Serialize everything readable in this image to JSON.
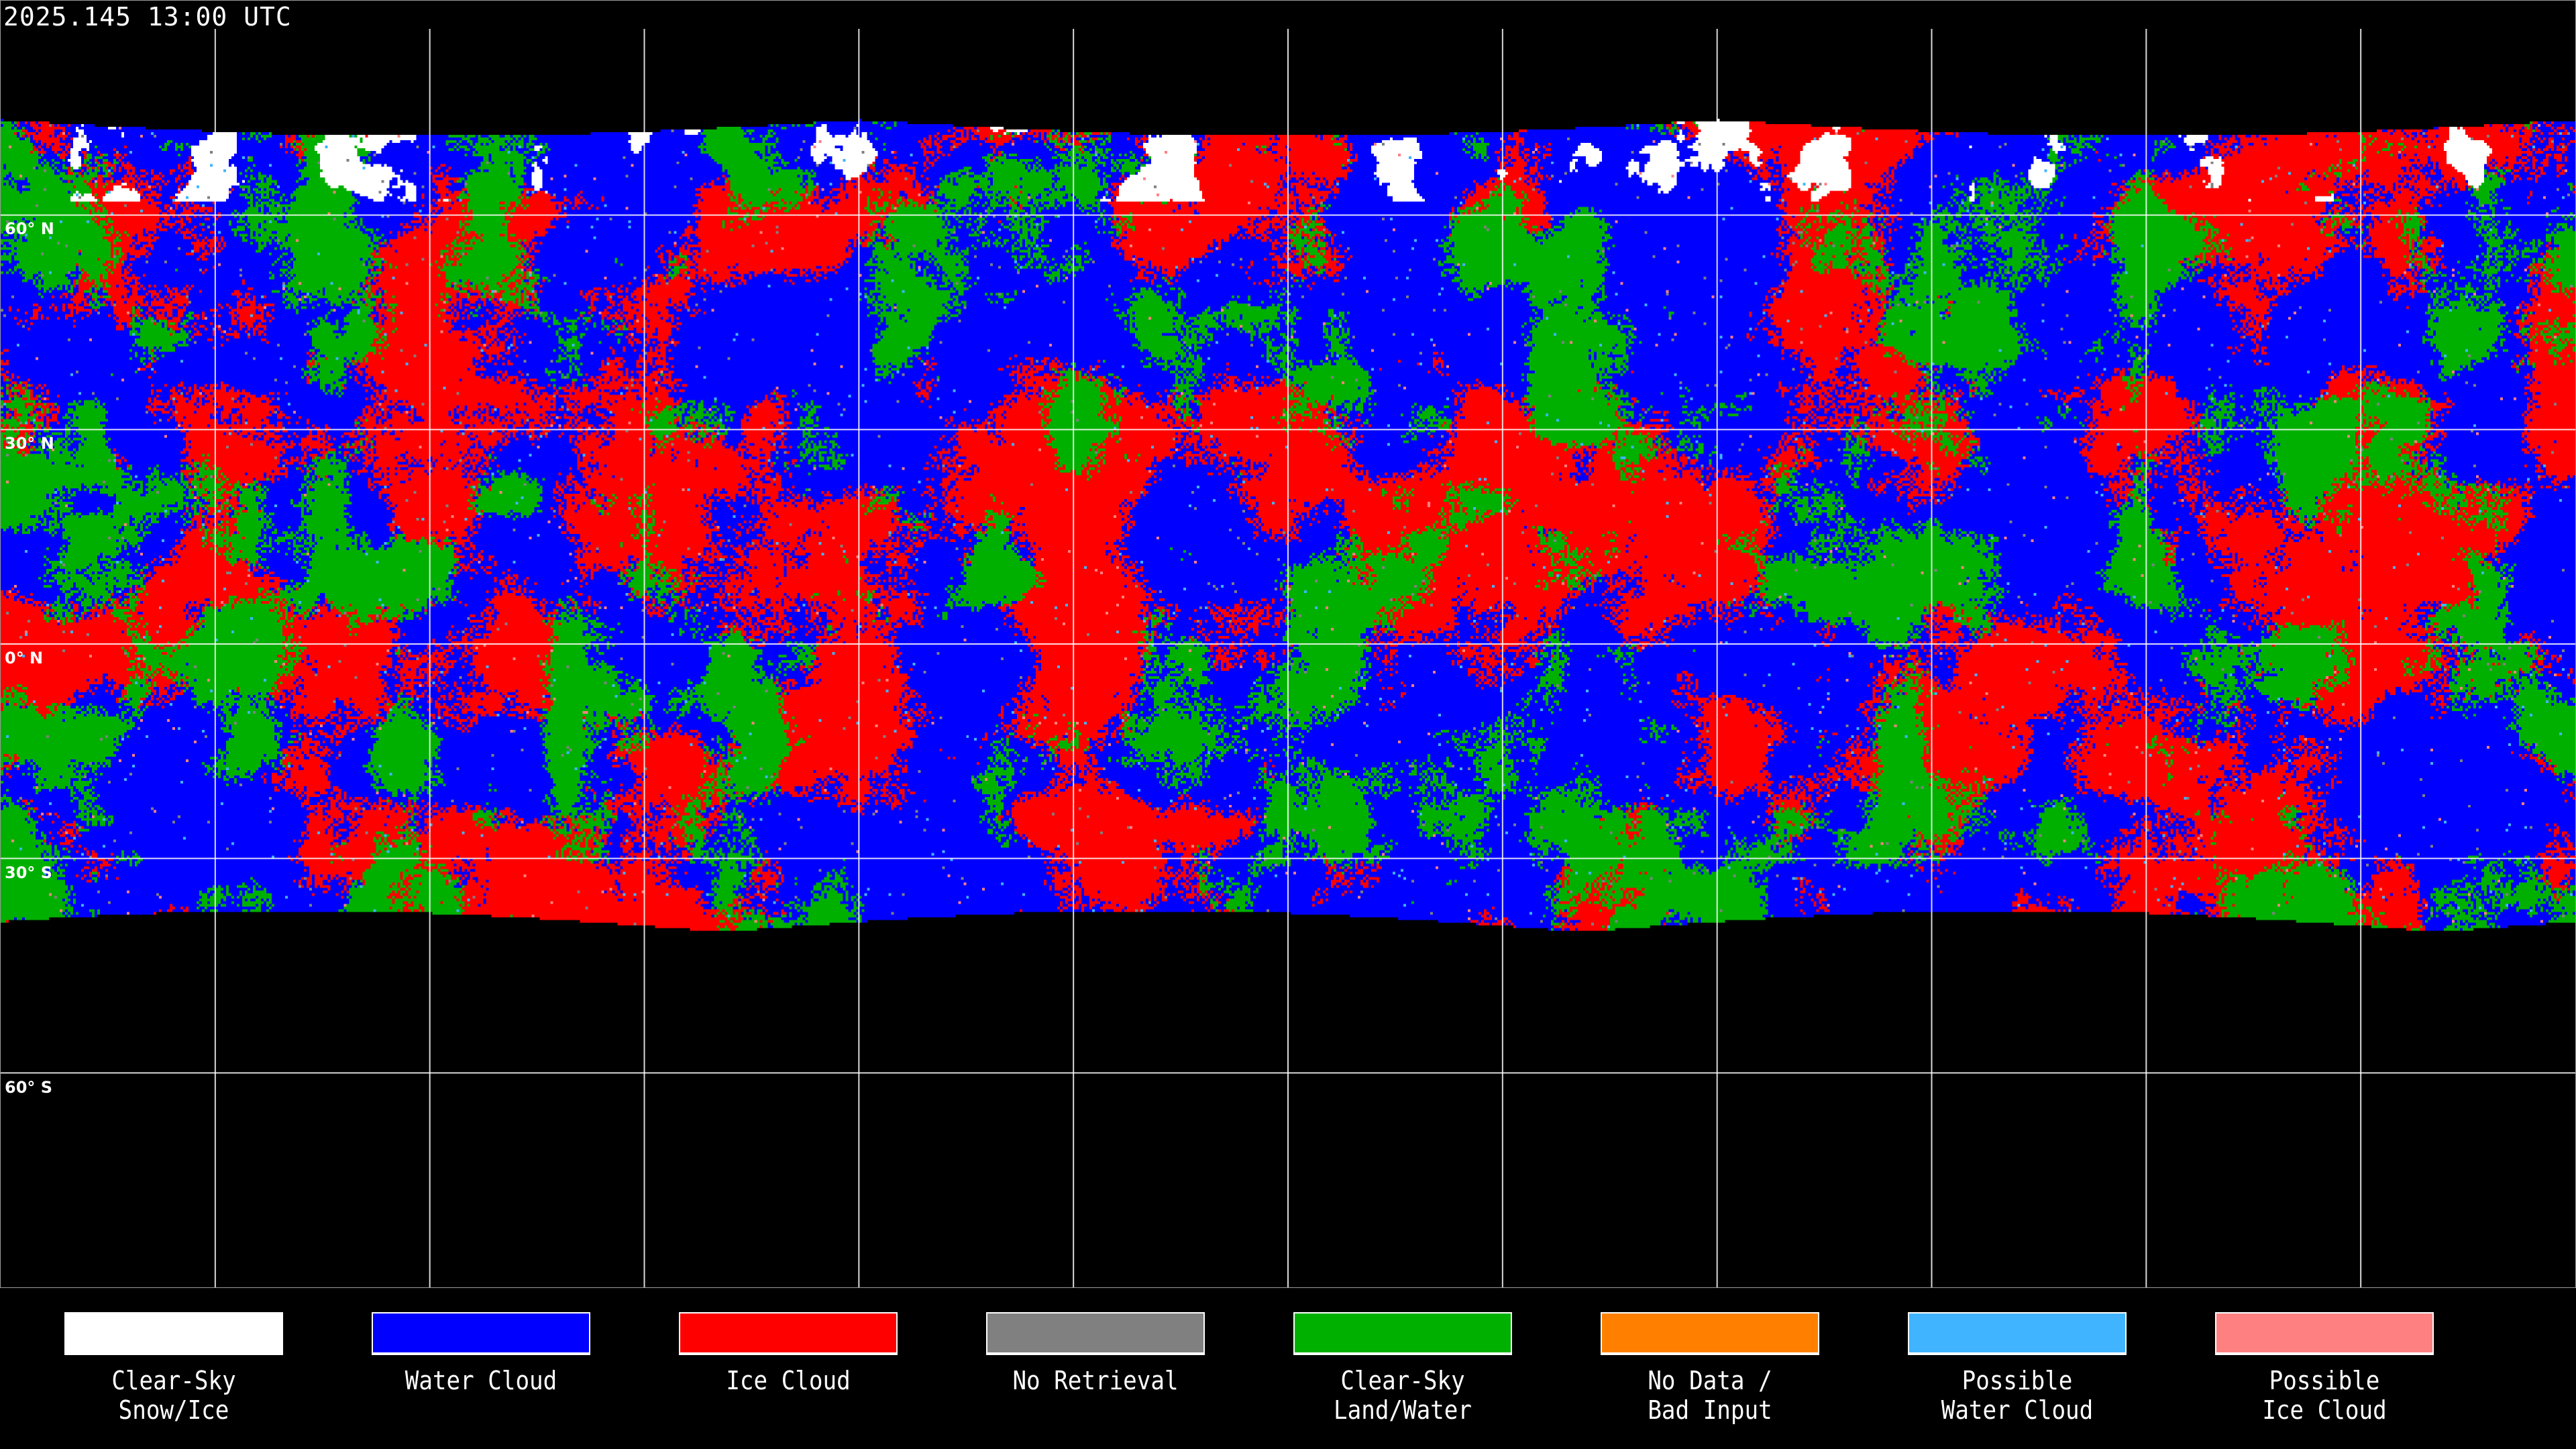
{
  "title": "2025.145 13:00 UTC",
  "map": {
    "projection": "equirectangular",
    "graticule_spacing_deg": 30,
    "latitude_labels": [
      "60° N",
      "30° N",
      "0° N",
      "30° S",
      "60° S"
    ],
    "background_color": "#000000",
    "gridline_color": "#ffffff"
  },
  "legend": [
    {
      "label": "Clear-Sky\nSnow/Ice",
      "color": "#ffffff"
    },
    {
      "label": "Water Cloud",
      "color": "#0000ff"
    },
    {
      "label": "Ice Cloud",
      "color": "#ff0000"
    },
    {
      "label": "No Retrieval",
      "color": "#808080"
    },
    {
      "label": "Clear-Sky\nLand/Water",
      "color": "#00b000"
    },
    {
      "label": "No Data /\nBad Input",
      "color": "#ff8000"
    },
    {
      "label": "Possible\nWater Cloud",
      "color": "#40b4ff"
    },
    {
      "label": "Possible\nIce Cloud",
      "color": "#ff8080"
    }
  ]
}
